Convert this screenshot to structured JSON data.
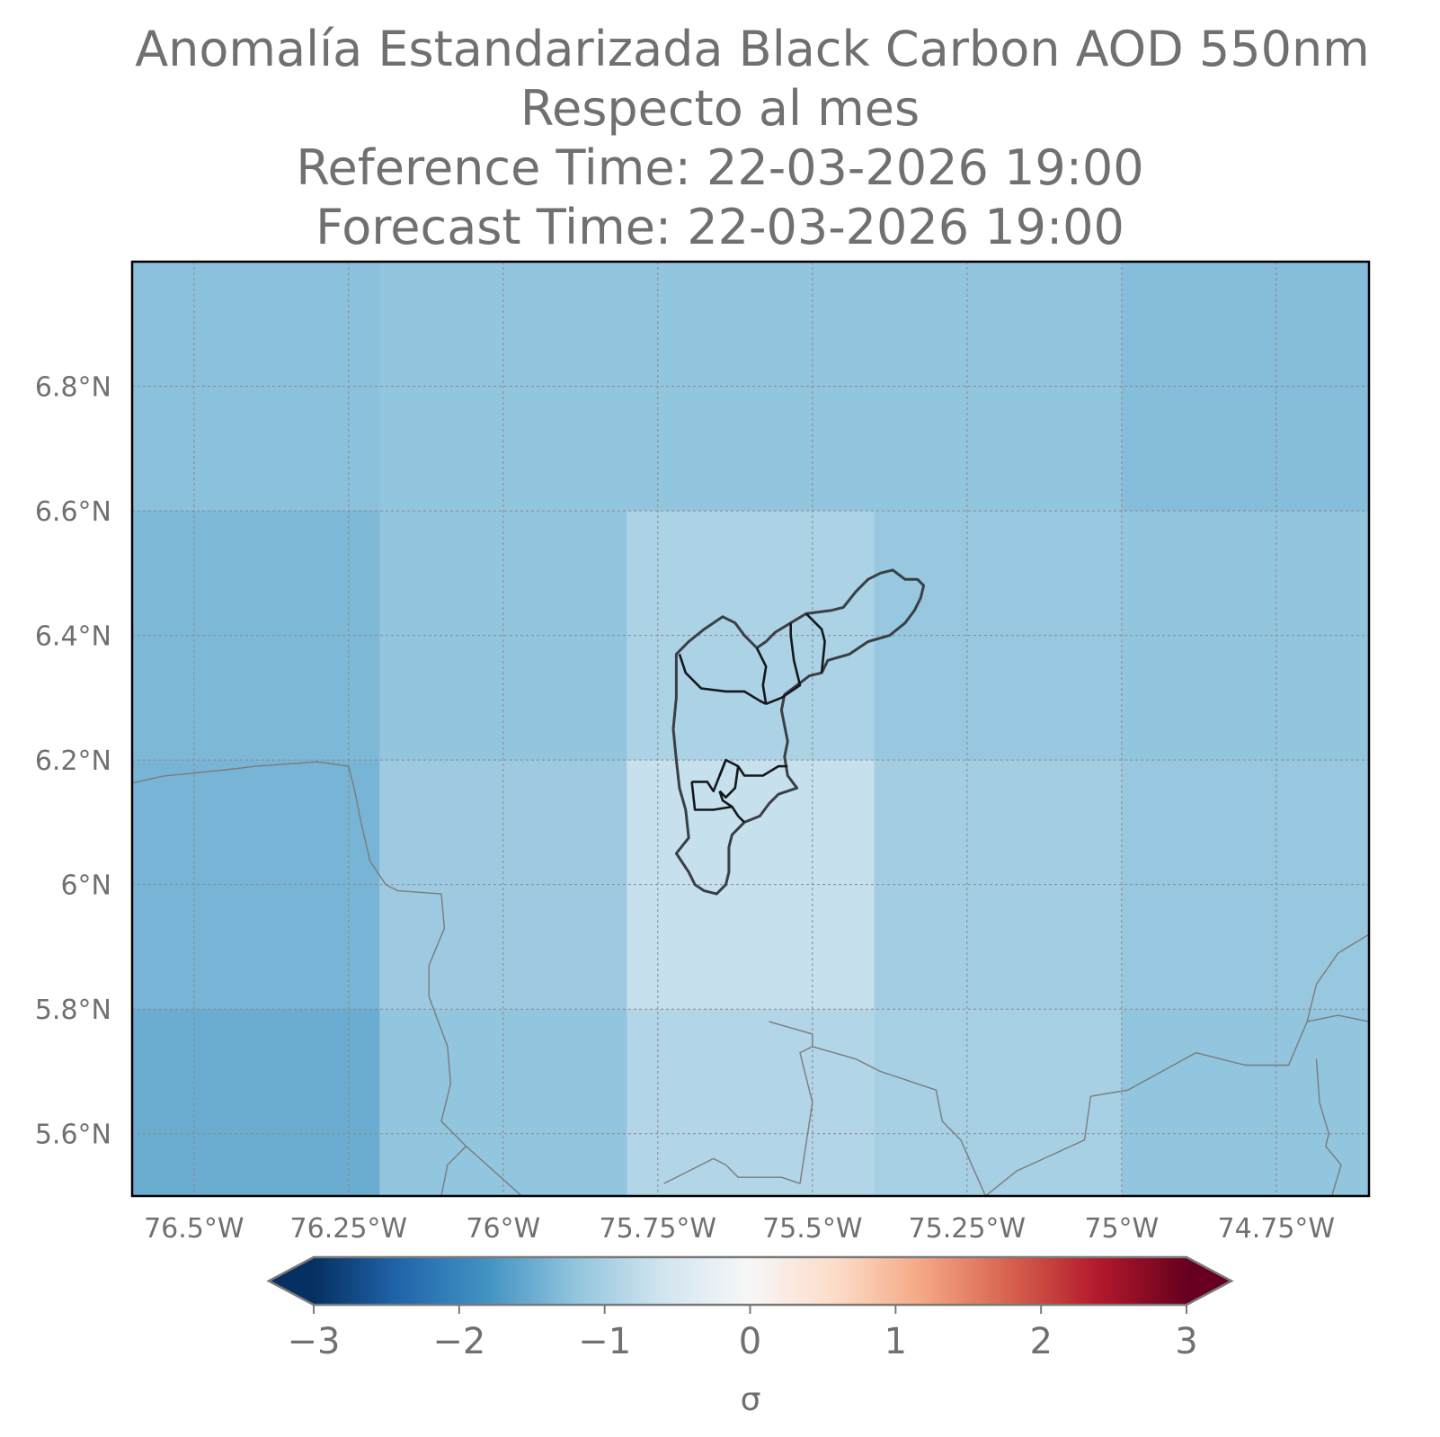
{
  "title": {
    "line1": "Anomalía Estandarizada Black Carbon AOD 550nm",
    "line2": "Respecto al mes",
    "line3": "Reference Time: 22-03-2026 19:00",
    "line4": "Forecast Time: 22-03-2026 19:00"
  },
  "map": {
    "lon_range": [
      -76.6,
      -74.6
    ],
    "lat_range": [
      5.5,
      7.0
    ],
    "xticks": [
      {
        "lon": -76.5,
        "label": "76.5°W"
      },
      {
        "lon": -76.25,
        "label": "76.25°W"
      },
      {
        "lon": -76.0,
        "label": "76°W"
      },
      {
        "lon": -75.75,
        "label": "75.75°W"
      },
      {
        "lon": -75.5,
        "label": "75.5°W"
      },
      {
        "lon": -75.25,
        "label": "75.25°W"
      },
      {
        "lon": -75.0,
        "label": "75°W"
      },
      {
        "lon": -74.75,
        "label": "74.75°W"
      }
    ],
    "yticks": [
      {
        "lat": 6.8,
        "label": "6.8°N"
      },
      {
        "lat": 6.6,
        "label": "6.6°N"
      },
      {
        "lat": 6.4,
        "label": "6.4°N"
      },
      {
        "lat": 6.2,
        "label": "6.2°N"
      },
      {
        "lat": 6.0,
        "label": "6°N"
      },
      {
        "lat": 5.8,
        "label": "5.8°N"
      },
      {
        "lat": 5.6,
        "label": "5.6°N"
      }
    ],
    "grid": true,
    "cells": [
      {
        "lon0": -76.6,
        "lon1": -76.2,
        "lat0": 6.6,
        "lat1": 7.0,
        "value": -1.25
      },
      {
        "lon0": -76.2,
        "lon1": -75.8,
        "lat0": 6.6,
        "lat1": 7.0,
        "value": -1.2
      },
      {
        "lon0": -75.8,
        "lon1": -75.4,
        "lat0": 6.6,
        "lat1": 7.0,
        "value": -1.2
      },
      {
        "lon0": -75.4,
        "lon1": -75.0,
        "lat0": 6.6,
        "lat1": 7.0,
        "value": -1.2
      },
      {
        "lon0": -75.0,
        "lon1": -74.6,
        "lat0": 6.6,
        "lat1": 7.0,
        "value": -1.3
      },
      {
        "lon0": -76.6,
        "lon1": -76.2,
        "lat0": 6.2,
        "lat1": 6.6,
        "value": -1.35
      },
      {
        "lon0": -76.2,
        "lon1": -75.8,
        "lat0": 6.2,
        "lat1": 6.6,
        "value": -1.2
      },
      {
        "lon0": -75.8,
        "lon1": -75.4,
        "lat0": 6.2,
        "lat1": 6.6,
        "value": -0.95
      },
      {
        "lon0": -75.4,
        "lon1": -75.0,
        "lat0": 6.2,
        "lat1": 6.6,
        "value": -1.15
      },
      {
        "lon0": -75.0,
        "lon1": -74.6,
        "lat0": 6.2,
        "lat1": 6.6,
        "value": -1.2
      },
      {
        "lon0": -76.6,
        "lon1": -76.2,
        "lat0": 5.8,
        "lat1": 6.2,
        "value": -1.4
      },
      {
        "lon0": -76.2,
        "lon1": -75.8,
        "lat0": 5.8,
        "lat1": 6.2,
        "value": -1.1
      },
      {
        "lon0": -75.8,
        "lon1": -75.4,
        "lat0": 5.8,
        "lat1": 6.2,
        "value": -0.7
      },
      {
        "lon0": -75.4,
        "lon1": -75.0,
        "lat0": 5.8,
        "lat1": 6.2,
        "value": -1.05
      },
      {
        "lon0": -75.0,
        "lon1": -74.6,
        "lat0": 5.8,
        "lat1": 6.2,
        "value": -1.15
      },
      {
        "lon0": -76.6,
        "lon1": -76.2,
        "lat0": 5.5,
        "lat1": 5.8,
        "value": -1.5
      },
      {
        "lon0": -76.2,
        "lon1": -75.8,
        "lat0": 5.5,
        "lat1": 5.8,
        "value": -1.2
      },
      {
        "lon0": -75.8,
        "lon1": -75.4,
        "lat0": 5.5,
        "lat1": 5.8,
        "value": -0.9
      },
      {
        "lon0": -75.4,
        "lon1": -75.0,
        "lat0": 5.5,
        "lat1": 5.8,
        "value": -1.0
      },
      {
        "lon0": -75.0,
        "lon1": -74.6,
        "lat0": 5.5,
        "lat1": 5.8,
        "value": -1.2
      }
    ],
    "boundaries": [
      {
        "name": "department-boundary",
        "points": [
          [
            -76.6,
            6.163
          ],
          [
            -76.55,
            6.174
          ],
          [
            -76.45,
            6.184
          ],
          [
            -76.4,
            6.19
          ],
          [
            -76.3,
            6.197
          ],
          [
            -76.25,
            6.19
          ],
          [
            -76.24,
            6.15
          ],
          [
            -76.23,
            6.1
          ],
          [
            -76.215,
            6.037
          ],
          [
            -76.19,
            6.0
          ],
          [
            -76.17,
            5.99
          ],
          [
            -76.1,
            5.985
          ],
          [
            -76.095,
            5.93
          ],
          [
            -76.12,
            5.87
          ],
          [
            -76.12,
            5.82
          ],
          [
            -76.09,
            5.74
          ],
          [
            -76.085,
            5.68
          ],
          [
            -76.1,
            5.62
          ],
          [
            -76.06,
            5.58
          ],
          [
            -75.97,
            5.5
          ]
        ]
      },
      {
        "name": "department-boundary",
        "points": [
          [
            -76.06,
            5.58
          ],
          [
            -76.09,
            5.55
          ],
          [
            -76.1,
            5.5
          ]
        ]
      },
      {
        "name": "department-boundary",
        "points": [
          [
            -75.74,
            5.52
          ],
          [
            -75.66,
            5.56
          ],
          [
            -75.64,
            5.55
          ],
          [
            -75.62,
            5.53
          ],
          [
            -75.55,
            5.53
          ],
          [
            -75.52,
            5.52
          ],
          [
            -75.5,
            5.65
          ],
          [
            -75.51,
            5.69
          ],
          [
            -75.52,
            5.73
          ],
          [
            -75.5,
            5.74
          ],
          [
            -75.5,
            5.76
          ],
          [
            -75.57,
            5.78
          ]
        ]
      },
      {
        "name": "department-boundary",
        "points": [
          [
            -75.5,
            5.74
          ],
          [
            -75.43,
            5.72
          ],
          [
            -75.39,
            5.7
          ],
          [
            -75.3,
            5.67
          ],
          [
            -75.29,
            5.62
          ],
          [
            -75.26,
            5.59
          ],
          [
            -75.22,
            5.5
          ]
        ]
      },
      {
        "name": "department-boundary",
        "points": [
          [
            -75.22,
            5.5
          ],
          [
            -75.17,
            5.54
          ],
          [
            -75.06,
            5.59
          ],
          [
            -75.05,
            5.66
          ],
          [
            -74.99,
            5.67
          ],
          [
            -74.88,
            5.73
          ],
          [
            -74.8,
            5.71
          ],
          [
            -74.73,
            5.71
          ],
          [
            -74.7,
            5.78
          ],
          [
            -74.65,
            5.79
          ],
          [
            -74.6,
            5.78
          ]
        ]
      },
      {
        "name": "department-boundary",
        "points": [
          [
            -74.7,
            5.78
          ],
          [
            -74.685,
            5.84
          ],
          [
            -74.65,
            5.89
          ],
          [
            -74.6,
            5.92
          ]
        ]
      },
      {
        "name": "department-boundary",
        "points": [
          [
            -74.685,
            5.72
          ],
          [
            -74.68,
            5.65
          ],
          [
            -74.665,
            5.6
          ],
          [
            -74.67,
            5.58
          ],
          [
            -74.645,
            5.55
          ],
          [
            -74.66,
            5.5
          ]
        ]
      }
    ],
    "study_region": {
      "name": "aburra-valley-outline",
      "points": [
        [
          -75.72,
          6.37
        ],
        [
          -75.7,
          6.39
        ],
        [
          -75.675,
          6.41
        ],
        [
          -75.645,
          6.43
        ],
        [
          -75.625,
          6.42
        ],
        [
          -75.61,
          6.4
        ],
        [
          -75.59,
          6.38
        ],
        [
          -75.575,
          6.39
        ],
        [
          -75.56,
          6.405
        ],
        [
          -75.535,
          6.42
        ],
        [
          -75.51,
          6.435
        ],
        [
          -75.47,
          6.44
        ],
        [
          -75.45,
          6.445
        ],
        [
          -75.43,
          6.47
        ],
        [
          -75.41,
          6.49
        ],
        [
          -75.39,
          6.5
        ],
        [
          -75.37,
          6.505
        ],
        [
          -75.35,
          6.49
        ],
        [
          -75.33,
          6.49
        ],
        [
          -75.32,
          6.48
        ],
        [
          -75.325,
          6.46
        ],
        [
          -75.335,
          6.44
        ],
        [
          -75.35,
          6.42
        ],
        [
          -75.375,
          6.4
        ],
        [
          -75.41,
          6.39
        ],
        [
          -75.44,
          6.37
        ],
        [
          -75.475,
          6.36
        ],
        [
          -75.485,
          6.34
        ],
        [
          -75.505,
          6.335
        ],
        [
          -75.525,
          6.32
        ],
        [
          -75.545,
          6.305
        ],
        [
          -75.55,
          6.28
        ],
        [
          -75.545,
          6.255
        ],
        [
          -75.54,
          6.23
        ],
        [
          -75.545,
          6.205
        ],
        [
          -75.54,
          6.175
        ],
        [
          -75.525,
          6.155
        ],
        [
          -75.555,
          6.145
        ],
        [
          -75.57,
          6.13
        ],
        [
          -75.585,
          6.11
        ],
        [
          -75.61,
          6.1
        ],
        [
          -75.63,
          6.08
        ],
        [
          -75.635,
          6.06
        ],
        [
          -75.635,
          6.02
        ],
        [
          -75.64,
          6.0
        ],
        [
          -75.655,
          5.985
        ],
        [
          -75.675,
          5.99
        ],
        [
          -75.69,
          6.0
        ],
        [
          -75.7,
          6.02
        ],
        [
          -75.72,
          6.05
        ],
        [
          -75.7,
          6.075
        ],
        [
          -75.705,
          6.12
        ],
        [
          -75.715,
          6.155
        ],
        [
          -75.72,
          6.2
        ],
        [
          -75.725,
          6.25
        ],
        [
          -75.72,
          6.3
        ],
        [
          -75.72,
          6.37
        ]
      ]
    },
    "study_region_internal": [
      {
        "points": [
          [
            -75.715,
            6.37
          ],
          [
            -75.705,
            6.34
          ],
          [
            -75.68,
            6.315
          ],
          [
            -75.64,
            6.31
          ],
          [
            -75.61,
            6.31
          ],
          [
            -75.585,
            6.295
          ],
          [
            -75.575,
            6.29
          ]
        ]
      },
      {
        "points": [
          [
            -75.575,
            6.29
          ],
          [
            -75.58,
            6.32
          ],
          [
            -75.575,
            6.35
          ],
          [
            -75.59,
            6.38
          ]
        ]
      },
      {
        "points": [
          [
            -75.575,
            6.29
          ],
          [
            -75.55,
            6.3
          ],
          [
            -75.52,
            6.32
          ],
          [
            -75.53,
            6.36
          ],
          [
            -75.535,
            6.4
          ],
          [
            -75.535,
            6.42
          ]
        ]
      },
      {
        "points": [
          [
            -75.51,
            6.435
          ],
          [
            -75.485,
            6.41
          ],
          [
            -75.48,
            6.39
          ],
          [
            -75.485,
            6.34
          ]
        ]
      },
      {
        "points": [
          [
            -75.695,
            6.165
          ],
          [
            -75.67,
            6.165
          ],
          [
            -75.66,
            6.15
          ],
          [
            -75.65,
            6.175
          ],
          [
            -75.64,
            6.2
          ],
          [
            -75.62,
            6.19
          ],
          [
            -75.61,
            6.175
          ],
          [
            -75.58,
            6.175
          ],
          [
            -75.555,
            6.19
          ],
          [
            -75.54,
            6.19
          ]
        ]
      },
      {
        "points": [
          [
            -75.65,
            6.15
          ],
          [
            -75.645,
            6.135
          ],
          [
            -75.63,
            6.125
          ],
          [
            -75.62,
            6.11
          ],
          [
            -75.61,
            6.1
          ]
        ]
      },
      {
        "points": [
          [
            -75.64,
            6.2
          ],
          [
            -75.65,
            6.175
          ]
        ]
      },
      {
        "points": [
          [
            -75.62,
            6.19
          ],
          [
            -75.625,
            6.155
          ],
          [
            -75.64,
            6.14
          ],
          [
            -75.65,
            6.15
          ]
        ]
      },
      {
        "points": [
          [
            -75.695,
            6.165
          ],
          [
            -75.69,
            6.12
          ],
          [
            -75.66,
            6.12
          ],
          [
            -75.63,
            6.125
          ]
        ]
      }
    ]
  },
  "colorbar": {
    "vmin": -3,
    "vmax": 3,
    "ticks": [
      {
        "value": -3,
        "label": "−3"
      },
      {
        "value": -2,
        "label": "−2"
      },
      {
        "value": -1,
        "label": "−1"
      },
      {
        "value": 0,
        "label": "0"
      },
      {
        "value": 1,
        "label": "1"
      },
      {
        "value": 2,
        "label": "2"
      },
      {
        "value": 3,
        "label": "3"
      }
    ],
    "label": "σ",
    "extend": "both",
    "colormap": "RdBu_r",
    "stops": [
      "#053061",
      "#2166ac",
      "#4393c3",
      "#92c5de",
      "#d1e5f0",
      "#f7f7f7",
      "#fddbc7",
      "#f4a582",
      "#d6604d",
      "#b2182b",
      "#67001f"
    ]
  }
}
